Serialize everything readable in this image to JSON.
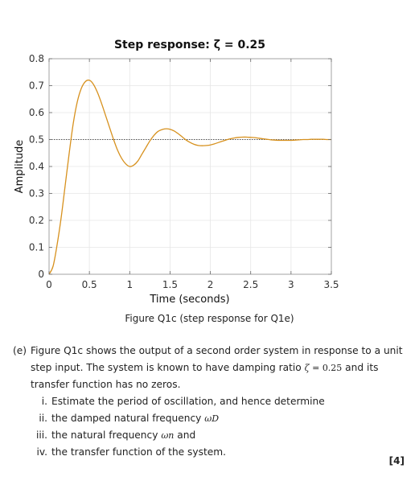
{
  "chart_data": {
    "type": "line",
    "title": "Step response: ζ = 0.25",
    "xlabel": "Time (seconds)",
    "ylabel": "Amplitude",
    "xlim": [
      0,
      3.5
    ],
    "ylim": [
      0,
      0.8
    ],
    "xticks": [
      0,
      0.5,
      1,
      1.5,
      2,
      2.5,
      3,
      3.5
    ],
    "xtick_labels": [
      "0",
      "0.5",
      "1",
      "1.5",
      "2",
      "2.5",
      "3",
      "3.5"
    ],
    "yticks": [
      0,
      0.1,
      0.2,
      0.3,
      0.4,
      0.5,
      0.6,
      0.7,
      0.8
    ],
    "ytick_labels": [
      "0",
      "0.1",
      "0.2",
      "0.3",
      "0.4",
      "0.5",
      "0.6",
      "0.7",
      "0.8"
    ],
    "grid": true,
    "reference_line": 0.5,
    "series": [
      {
        "color": "#d7911e",
        "x": [
          0,
          0.05,
          0.1,
          0.15,
          0.2,
          0.25,
          0.3,
          0.35,
          0.4,
          0.45,
          0.5,
          0.55,
          0.6,
          0.65,
          0.7,
          0.75,
          0.8,
          0.85,
          0.9,
          0.95,
          1.0,
          1.05,
          1.1,
          1.15,
          1.2,
          1.25,
          1.3,
          1.35,
          1.4,
          1.45,
          1.5,
          1.55,
          1.6,
          1.65,
          1.7,
          1.75,
          1.8,
          1.85,
          1.9,
          1.95,
          2.0,
          2.05,
          2.1,
          2.15,
          2.2,
          2.25,
          2.3,
          2.35,
          2.4,
          2.45,
          2.5,
          2.55,
          2.6,
          2.65,
          2.7,
          2.75,
          2.8,
          2.85,
          2.9,
          2.95,
          3.0,
          3.05,
          3.1,
          3.15,
          3.2,
          3.25,
          3.3,
          3.35,
          3.4,
          3.45,
          3.5
        ],
        "y": [
          0,
          0.03,
          0.11,
          0.21,
          0.33,
          0.45,
          0.56,
          0.64,
          0.69,
          0.715,
          0.72,
          0.705,
          0.675,
          0.635,
          0.59,
          0.545,
          0.5,
          0.46,
          0.43,
          0.41,
          0.4,
          0.405,
          0.42,
          0.445,
          0.47,
          0.495,
          0.515,
          0.53,
          0.537,
          0.54,
          0.538,
          0.532,
          0.522,
          0.51,
          0.498,
          0.489,
          0.482,
          0.478,
          0.477,
          0.478,
          0.48,
          0.484,
          0.489,
          0.494,
          0.499,
          0.503,
          0.506,
          0.508,
          0.509,
          0.509,
          0.508,
          0.507,
          0.505,
          0.503,
          0.501,
          0.499,
          0.498,
          0.497,
          0.497,
          0.497,
          0.497,
          0.498,
          0.499,
          0.5,
          0.5,
          0.501,
          0.501,
          0.501,
          0.501,
          0.5,
          0.5
        ]
      }
    ]
  },
  "caption": "Figure Q1c (step response for Q1e)",
  "question": {
    "part": "(e)",
    "intro_1": "Figure Q1c shows the output of a second order system in response to a unit step input. The system is known to have damping ratio ",
    "zeta_symbol": "ζ",
    "equals": " = ",
    "zeta_value": "0.25",
    "intro_2": " and its transfer function has no zeros.",
    "items": [
      {
        "num": "i.",
        "text": "Estimate the period of oscillation, and hence determine"
      },
      {
        "num": "ii.",
        "text": "the damped natural frequency ",
        "symbol": "ωD"
      },
      {
        "num": "iii.",
        "text": "the natural frequency ",
        "symbol": "ωn",
        "suffix": " and"
      },
      {
        "num": "iv.",
        "text": "the transfer function of the system."
      }
    ],
    "marks": "[4]"
  }
}
